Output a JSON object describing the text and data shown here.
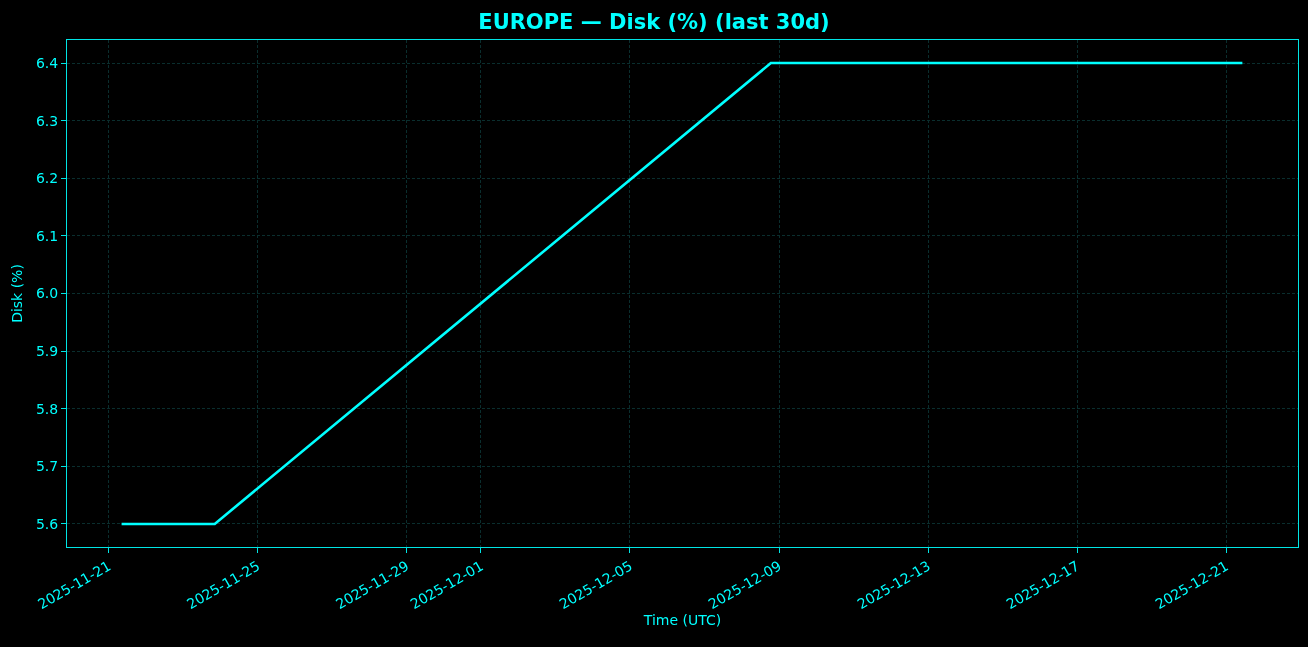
{
  "chart_data": {
    "type": "line",
    "title": "EUROPE — Disk (%) (last 30d)",
    "xlabel": "Time (UTC)",
    "ylabel": "Disk (%)",
    "x": [
      "2025-11-21T08:30",
      "2025-11-23T20:30",
      "2025-12-08T18:45",
      "2025-12-21T10:30"
    ],
    "values": [
      5.6,
      5.6,
      6.4,
      6.4
    ],
    "color": "#00ffff",
    "xlim": [
      "2025-11-19T21:20",
      "2025-12-22T22:20"
    ],
    "xticks": [
      "2025-11-21",
      "2025-11-25",
      "2025-11-29",
      "2025-12-01",
      "2025-12-05",
      "2025-12-09",
      "2025-12-13",
      "2025-12-17",
      "2025-12-21"
    ],
    "ylim": [
      5.56,
      6.44
    ],
    "yticks": [
      5.6,
      5.7,
      5.8,
      5.9,
      {
        "value": 6,
        "label": "6.0"
      },
      6.1,
      6.2,
      6.3,
      6.4
    ],
    "grid": true,
    "line_style": "solid"
  }
}
